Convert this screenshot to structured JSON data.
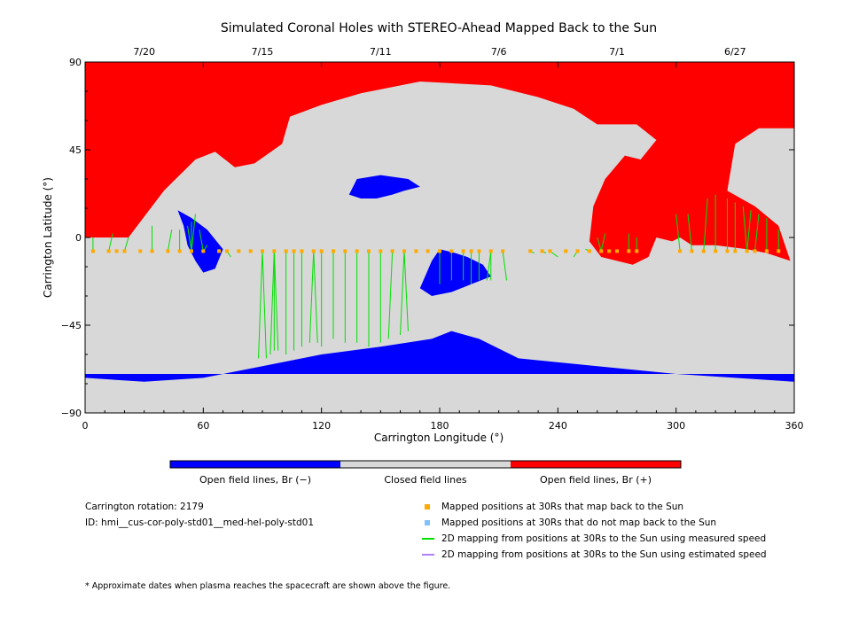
{
  "chart_data": {
    "type": "map",
    "title": "Simulated Coronal Holes with STEREO-Ahead Mapped Back to the Sun",
    "xlabel": "Carrington Longitude (°)",
    "ylabel": "Carrington Latitude (°)",
    "xlim": [
      0,
      360
    ],
    "ylim": [
      -90,
      90
    ],
    "xticks": [
      0,
      60,
      120,
      180,
      240,
      300,
      360
    ],
    "yticks": [
      -90,
      -45,
      0,
      45,
      90
    ],
    "date_ticks": [
      {
        "label": "7/20",
        "lon": 30
      },
      {
        "label": "7/15",
        "lon": 90
      },
      {
        "label": "7/11",
        "lon": 150
      },
      {
        "label": "7/6",
        "lon": 210
      },
      {
        "label": "7/1",
        "lon": 270
      },
      {
        "label": "6/27",
        "lon": 330
      }
    ],
    "colorbar": {
      "segments": [
        {
          "label": "Open field lines, Br (−)",
          "color": "#0000ff"
        },
        {
          "label": "Closed field lines",
          "color": "#d8d8d8"
        },
        {
          "label": "Open field lines, Br (+)",
          "color": "#ff0000"
        }
      ]
    },
    "regions": [
      {
        "field": "positive",
        "color": "#ff0000",
        "description_points": [
          [
            0,
            90
          ],
          [
            360,
            90
          ],
          [
            360,
            56
          ],
          [
            342,
            56
          ],
          [
            330,
            48
          ],
          [
            326,
            24
          ],
          [
            340,
            16
          ],
          [
            352,
            6
          ],
          [
            358,
            -12
          ],
          [
            346,
            -8
          ],
          [
            336,
            -6
          ],
          [
            320,
            -4
          ],
          [
            308,
            -4
          ],
          [
            302,
            0
          ],
          [
            298,
            -2
          ],
          [
            290,
            0
          ],
          [
            286,
            -10
          ],
          [
            278,
            -14
          ],
          [
            262,
            -10
          ],
          [
            256,
            -2
          ],
          [
            258,
            16
          ],
          [
            264,
            30
          ],
          [
            274,
            42
          ],
          [
            282,
            40
          ],
          [
            290,
            50
          ],
          [
            280,
            58
          ],
          [
            260,
            58
          ],
          [
            248,
            66
          ],
          [
            230,
            72
          ],
          [
            206,
            78
          ],
          [
            170,
            80
          ],
          [
            140,
            74
          ],
          [
            120,
            68
          ],
          [
            104,
            62
          ],
          [
            100,
            48
          ],
          [
            86,
            38
          ],
          [
            76,
            36
          ],
          [
            66,
            44
          ],
          [
            56,
            40
          ],
          [
            50,
            34
          ],
          [
            44,
            28
          ],
          [
            40,
            24
          ],
          [
            22,
            0
          ],
          [
            0,
            0
          ]
        ]
      },
      {
        "field": "negative",
        "color": "#0000ff",
        "description_points": [
          [
            0,
            -70
          ],
          [
            360,
            -70
          ],
          [
            360,
            -74
          ],
          [
            300,
            -70
          ],
          [
            260,
            -66
          ],
          [
            220,
            -62
          ],
          [
            200,
            -52
          ],
          [
            186,
            -48
          ],
          [
            176,
            -52
          ],
          [
            150,
            -56
          ],
          [
            120,
            -60
          ],
          [
            90,
            -66
          ],
          [
            60,
            -72
          ],
          [
            30,
            -74
          ],
          [
            0,
            -72
          ]
        ]
      },
      {
        "field": "negative",
        "color": "#0000ff",
        "description_points": [
          [
            47,
            14
          ],
          [
            54,
            10
          ],
          [
            62,
            4
          ],
          [
            70,
            -6
          ],
          [
            66,
            -16
          ],
          [
            60,
            -18
          ],
          [
            56,
            -12
          ],
          [
            52,
            -4
          ],
          [
            50,
            6
          ]
        ]
      },
      {
        "field": "negative",
        "color": "#0000ff",
        "description_points": [
          [
            170,
            -26
          ],
          [
            176,
            -30
          ],
          [
            186,
            -28
          ],
          [
            196,
            -24
          ],
          [
            206,
            -20
          ],
          [
            202,
            -14
          ],
          [
            194,
            -10
          ],
          [
            188,
            -8
          ],
          [
            180,
            -6
          ],
          [
            176,
            -12
          ]
        ]
      },
      {
        "field": "negative",
        "color": "#0000ff",
        "description_points": [
          [
            134,
            22
          ],
          [
            140,
            20
          ],
          [
            148,
            20
          ],
          [
            156,
            22
          ],
          [
            162,
            24
          ],
          [
            170,
            26
          ],
          [
            164,
            30
          ],
          [
            150,
            32
          ],
          [
            138,
            30
          ]
        ]
      }
    ],
    "footpoints_30Rs_lat": -7,
    "series": [
      {
        "name": "Mapped positions at 30Rs that map back to the Sun",
        "color": "#ffaa00",
        "marker": "square",
        "x": [
          4,
          12,
          16,
          20,
          28,
          34,
          42,
          48,
          54,
          60,
          68,
          72,
          78,
          84,
          90,
          96,
          102,
          106,
          110,
          116,
          120,
          126,
          132,
          138,
          144,
          150,
          156,
          162,
          168,
          174,
          180,
          186,
          192,
          196,
          200,
          206,
          212,
          226,
          232,
          236,
          244,
          250,
          256,
          262,
          266,
          270,
          276,
          280,
          302,
          308,
          314,
          320,
          326,
          330,
          336,
          340,
          346,
          352
        ]
      },
      {
        "name": "Mapped positions at 30Rs that do not map back to the Sun",
        "color": "#80c0ff",
        "marker": "square",
        "x": []
      },
      {
        "name": "2D mapping from positions at 30Rs to the Sun using measured speed",
        "color": "#00e000",
        "marker": "line",
        "lines": [
          [
            4,
            0
          ],
          [
            14,
            2
          ],
          [
            22,
            0
          ],
          [
            34,
            6
          ],
          [
            44,
            4
          ],
          [
            48,
            4
          ],
          [
            52,
            6
          ],
          [
            54,
            8
          ],
          [
            56,
            12
          ],
          [
            58,
            4
          ],
          [
            62,
            -4
          ],
          [
            68,
            -6
          ],
          [
            74,
            -10
          ],
          [
            88,
            -62
          ],
          [
            92,
            -62
          ],
          [
            94,
            -60
          ],
          [
            96,
            -58
          ],
          [
            98,
            -58
          ],
          [
            102,
            -60
          ],
          [
            106,
            -58
          ],
          [
            110,
            -56
          ],
          [
            114,
            -54
          ],
          [
            118,
            -54
          ],
          [
            120,
            -56
          ],
          [
            126,
            -52
          ],
          [
            132,
            -54
          ],
          [
            138,
            -54
          ],
          [
            144,
            -56
          ],
          [
            150,
            -54
          ],
          [
            154,
            -52
          ],
          [
            160,
            -50
          ],
          [
            164,
            -48
          ],
          [
            180,
            -24
          ],
          [
            186,
            -22
          ],
          [
            192,
            -22
          ],
          [
            196,
            -24
          ],
          [
            200,
            -22
          ],
          [
            204,
            -22
          ],
          [
            206,
            -22
          ],
          [
            214,
            -22
          ],
          [
            228,
            -8
          ],
          [
            234,
            -8
          ],
          [
            240,
            -10
          ],
          [
            248,
            -10
          ],
          [
            254,
            -6
          ],
          [
            260,
            0
          ],
          [
            264,
            2
          ],
          [
            276,
            2
          ],
          [
            280,
            0
          ],
          [
            300,
            12
          ],
          [
            306,
            12
          ],
          [
            316,
            20
          ],
          [
            320,
            22
          ],
          [
            326,
            20
          ],
          [
            330,
            18
          ],
          [
            334,
            16
          ],
          [
            338,
            14
          ],
          [
            342,
            12
          ],
          [
            346,
            10
          ],
          [
            352,
            4
          ]
        ]
      },
      {
        "name": "2D mapping from positions at 30Rs to the Sun using estimated speed",
        "color": "#b380ff",
        "marker": "line",
        "lines": []
      }
    ]
  },
  "info": {
    "rotation": "Carrington rotation: 2179",
    "id": "ID: hmi__cus-cor-poly-std01__med-hel-poly-std01",
    "footnote": "* Approximate dates when plasma reaches the spacecraft are shown above the figure."
  },
  "legend": {
    "items": [
      {
        "label": "Mapped positions at 30Rs that map back to the Sun",
        "color": "#ffaa00",
        "kind": "square"
      },
      {
        "label": "Mapped positions at 30Rs that do not map back to the Sun",
        "color": "#80c0ff",
        "kind": "square"
      },
      {
        "label": "2D mapping from positions at 30Rs to the Sun using measured speed",
        "color": "#00e000",
        "kind": "line"
      },
      {
        "label": "2D mapping from positions at 30Rs to the Sun using estimated speed",
        "color": "#b380ff",
        "kind": "line"
      }
    ]
  }
}
